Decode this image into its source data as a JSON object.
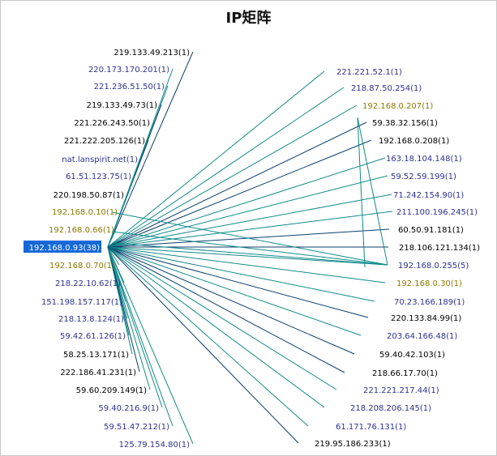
{
  "title": "IP矩阵",
  "colors": {
    "edge_dark": "#0b3f6e",
    "edge_teal": "#118a8a",
    "center_bg": "#1468d8",
    "center_text": "#ffffff"
  },
  "center_node": {
    "label": "192.168.0.93(38)"
  },
  "left_nodes": [
    {
      "label": "219.133.49.213(1)",
      "color": "black"
    },
    {
      "label": "220.173.170.201(1)",
      "color": "blue"
    },
    {
      "label": "221.236.51.50(1)",
      "color": "blue"
    },
    {
      "label": "219.133.49.73(1)",
      "color": "black"
    },
    {
      "label": "221.226.243.50(1)",
      "color": "black"
    },
    {
      "label": "221.222.205.126(1)",
      "color": "black"
    },
    {
      "label": "nat.lanspirit.net(1)",
      "color": "blue"
    },
    {
      "label": "61.51.123.75(1)",
      "color": "blue"
    },
    {
      "label": "220.198.50.87(1)",
      "color": "black"
    },
    {
      "label": "192.168.0.10(1)",
      "color": "olive"
    },
    {
      "label": "192.168.0.66(1)",
      "color": "olive"
    },
    {
      "label": "192.168.0.70(1)",
      "color": "olive"
    },
    {
      "label": "218.22.10.62(1)",
      "color": "blue"
    },
    {
      "label": "151.198.157.117(1)",
      "color": "blue"
    },
    {
      "label": "218.13.8.124(1)",
      "color": "blue"
    },
    {
      "label": "59.42.61.126(1)",
      "color": "blue"
    },
    {
      "label": "58.25.13.171(1)",
      "color": "black"
    },
    {
      "label": "222.186.41.231(1)",
      "color": "black"
    },
    {
      "label": "59.60.209.149(1)",
      "color": "black"
    },
    {
      "label": "59.40.216.9(1)",
      "color": "blue"
    },
    {
      "label": "59.51.47.212(1)",
      "color": "blue"
    },
    {
      "label": "125.79.154.80(1)",
      "color": "blue"
    }
  ],
  "right_nodes": [
    {
      "label": "221.221.52.1(1)",
      "color": "blue"
    },
    {
      "label": "218.87.50.254(1)",
      "color": "blue"
    },
    {
      "label": "192.168.0.207(1)",
      "color": "olive"
    },
    {
      "label": "59.38.32.156(1)",
      "color": "black"
    },
    {
      "label": "192.168.0.208(1)",
      "color": "black"
    },
    {
      "label": "163.18.104.148(1)",
      "color": "blue"
    },
    {
      "label": "59.52.59.199(1)",
      "color": "blue"
    },
    {
      "label": "71.242.154.90(1)",
      "color": "blue"
    },
    {
      "label": "211.100.196.245(1)",
      "color": "blue"
    },
    {
      "label": "60.50.91.181(1)",
      "color": "black"
    },
    {
      "label": "218.106.121.134(1)",
      "color": "black"
    },
    {
      "label": "192.168.0.255(5)",
      "color": "blue"
    },
    {
      "label": "192.168.0.30(1)",
      "color": "olive"
    },
    {
      "label": "70.23.166.189(1)",
      "color": "blue"
    },
    {
      "label": "220.133.84.99(1)",
      "color": "black"
    },
    {
      "label": "203.64.166.48(1)",
      "color": "blue"
    },
    {
      "label": "59.40.42.103(1)",
      "color": "black"
    },
    {
      "label": "218.66.17.70(1)",
      "color": "black"
    },
    {
      "label": "221.221.217.44(1)",
      "color": "blue"
    },
    {
      "label": "218.208.206.145(1)",
      "color": "blue"
    },
    {
      "label": "61.171.76.131(1)",
      "color": "blue"
    },
    {
      "label": "219.95.186.233(1)",
      "color": "black"
    }
  ]
}
